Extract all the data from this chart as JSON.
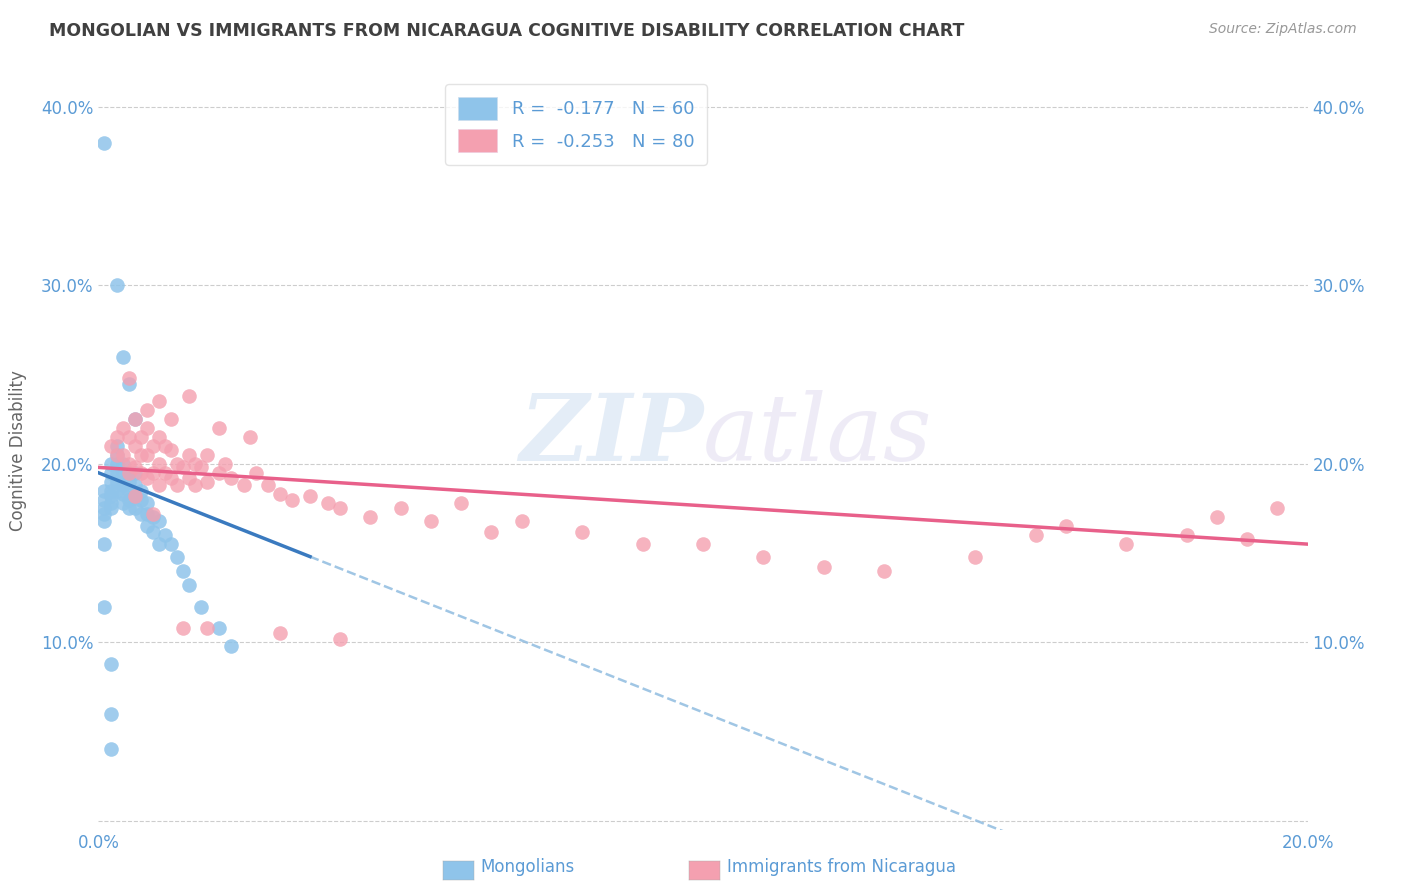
{
  "title": "MONGOLIAN VS IMMIGRANTS FROM NICARAGUA COGNITIVE DISABILITY CORRELATION CHART",
  "source": "Source: ZipAtlas.com",
  "ylabel": "Cognitive Disability",
  "xlim": [
    0.0,
    0.2
  ],
  "ylim": [
    -0.005,
    0.42
  ],
  "xticks": [
    0.0,
    0.05,
    0.1,
    0.15,
    0.2
  ],
  "yticks": [
    0.0,
    0.1,
    0.2,
    0.3,
    0.4
  ],
  "series1_label": "Mongolians",
  "series2_label": "Immigrants from Nicaragua",
  "color1": "#8fc4ea",
  "color2": "#f4a0b0",
  "trendline1_solid_color": "#3a7abf",
  "trendline2_color": "#e8608a",
  "trendline1_dashed_color": "#90bce0",
  "watermark_zip": "ZIP",
  "watermark_atlas": "atlas",
  "background_color": "#ffffff",
  "grid_color": "#c8c8c8",
  "title_color": "#404040",
  "axis_color": "#5b9bd5",
  "legend_text_color": "#5b9bd5",
  "scatter1_x": [
    0.001,
    0.001,
    0.001,
    0.001,
    0.001,
    0.002,
    0.002,
    0.002,
    0.002,
    0.002,
    0.002,
    0.002,
    0.003,
    0.003,
    0.003,
    0.003,
    0.003,
    0.003,
    0.004,
    0.004,
    0.004,
    0.004,
    0.004,
    0.005,
    0.005,
    0.005,
    0.005,
    0.005,
    0.006,
    0.006,
    0.006,
    0.006,
    0.007,
    0.007,
    0.007,
    0.008,
    0.008,
    0.008,
    0.009,
    0.009,
    0.01,
    0.01,
    0.011,
    0.012,
    0.013,
    0.014,
    0.015,
    0.017,
    0.02,
    0.022,
    0.001,
    0.001,
    0.002,
    0.003,
    0.004,
    0.005,
    0.006,
    0.002,
    0.002,
    0.001
  ],
  "scatter1_y": [
    0.185,
    0.18,
    0.175,
    0.172,
    0.168,
    0.2,
    0.195,
    0.19,
    0.185,
    0.182,
    0.178,
    0.175,
    0.21,
    0.205,
    0.2,
    0.195,
    0.19,
    0.185,
    0.2,
    0.195,
    0.188,
    0.183,
    0.178,
    0.195,
    0.19,
    0.185,
    0.18,
    0.175,
    0.195,
    0.188,
    0.182,
    0.175,
    0.185,
    0.18,
    0.172,
    0.178,
    0.172,
    0.165,
    0.17,
    0.162,
    0.168,
    0.155,
    0.16,
    0.155,
    0.148,
    0.14,
    0.132,
    0.12,
    0.108,
    0.098,
    0.155,
    0.12,
    0.088,
    0.3,
    0.26,
    0.245,
    0.225,
    0.06,
    0.04,
    0.38
  ],
  "scatter2_x": [
    0.002,
    0.003,
    0.003,
    0.004,
    0.004,
    0.005,
    0.005,
    0.005,
    0.006,
    0.006,
    0.006,
    0.007,
    0.007,
    0.007,
    0.008,
    0.008,
    0.008,
    0.009,
    0.009,
    0.01,
    0.01,
    0.01,
    0.011,
    0.011,
    0.012,
    0.012,
    0.013,
    0.013,
    0.014,
    0.015,
    0.015,
    0.016,
    0.016,
    0.017,
    0.018,
    0.018,
    0.02,
    0.021,
    0.022,
    0.024,
    0.026,
    0.028,
    0.03,
    0.032,
    0.035,
    0.038,
    0.04,
    0.045,
    0.05,
    0.055,
    0.06,
    0.065,
    0.07,
    0.08,
    0.09,
    0.1,
    0.11,
    0.12,
    0.13,
    0.145,
    0.155,
    0.16,
    0.17,
    0.18,
    0.185,
    0.19,
    0.195,
    0.005,
    0.008,
    0.01,
    0.012,
    0.015,
    0.02,
    0.025,
    0.03,
    0.04,
    0.006,
    0.009,
    0.014,
    0.018
  ],
  "scatter2_y": [
    0.21,
    0.215,
    0.205,
    0.22,
    0.205,
    0.215,
    0.2,
    0.195,
    0.225,
    0.21,
    0.198,
    0.215,
    0.205,
    0.195,
    0.22,
    0.205,
    0.192,
    0.21,
    0.195,
    0.215,
    0.2,
    0.188,
    0.21,
    0.195,
    0.208,
    0.192,
    0.2,
    0.188,
    0.198,
    0.205,
    0.192,
    0.2,
    0.188,
    0.198,
    0.205,
    0.19,
    0.195,
    0.2,
    0.192,
    0.188,
    0.195,
    0.188,
    0.183,
    0.18,
    0.182,
    0.178,
    0.175,
    0.17,
    0.175,
    0.168,
    0.178,
    0.162,
    0.168,
    0.162,
    0.155,
    0.155,
    0.148,
    0.142,
    0.14,
    0.148,
    0.16,
    0.165,
    0.155,
    0.16,
    0.17,
    0.158,
    0.175,
    0.248,
    0.23,
    0.235,
    0.225,
    0.238,
    0.22,
    0.215,
    0.105,
    0.102,
    0.182,
    0.172,
    0.108,
    0.108
  ],
  "trendline1_x_start": 0.0,
  "trendline1_x_solid_end": 0.035,
  "trendline1_x_dashed_end": 0.2,
  "trendline1_y_start": 0.195,
  "trendline1_y_solid_end": 0.148,
  "trendline1_y_dashed_end": 0.0,
  "trendline2_x_start": 0.0,
  "trendline2_x_end": 0.2,
  "trendline2_y_start": 0.198,
  "trendline2_y_end": 0.155
}
